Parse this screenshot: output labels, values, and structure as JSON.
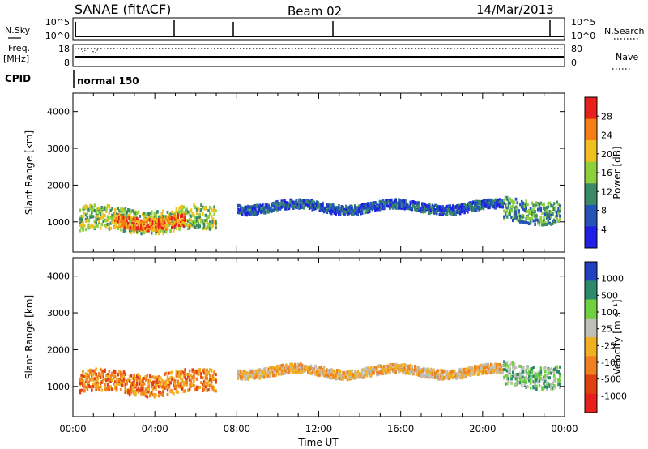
{
  "header": {
    "station": "SANAE (fitACF)",
    "beam": "Beam 02",
    "date": "14/Mar/2013"
  },
  "top_panels": {
    "nsky_label": "N.Sky",
    "nsky_ticks": [
      "10^5",
      "10^0"
    ],
    "nsearch_label": "N.Search",
    "nsearch_ticks": [
      "10^5",
      "10^0"
    ],
    "freq_label": "Freq.",
    "freq_unit": "[MHz]",
    "freq_ticks": [
      "18",
      "8"
    ],
    "nave_label": "Nave",
    "nave_ticks": [
      "80",
      "0"
    ],
    "cpid_label": "CPID",
    "cpid_value": "normal 150"
  },
  "chart_data": [
    {
      "type": "heatmap",
      "name": "power",
      "ylabel": "Slant Range [km]",
      "ylim": [
        180,
        4500
      ],
      "yticks": [
        1000,
        2000,
        3000,
        4000
      ],
      "xlim": [
        0,
        24
      ],
      "colorbar": {
        "label": "Power [dB]",
        "ticks": [
          "28",
          "24",
          "20",
          "16",
          "12",
          "8",
          "4"
        ],
        "colors": [
          "#1f1fe6",
          "#2454b8",
          "#3a8a66",
          "#8ecf3c",
          "#f0c020",
          "#f57f14",
          "#e6201c"
        ]
      },
      "bands": [
        {
          "x0": 0.3,
          "x1": 7.0,
          "center_km": 1050,
          "half_width_km": 320,
          "level": 3
        },
        {
          "x0": 2.0,
          "x1": 5.5,
          "center_km": 1000,
          "half_width_km": 160,
          "level": 5
        },
        {
          "x0": 8.0,
          "x1": 21.0,
          "center_km": 1400,
          "half_width_km": 120,
          "level": 1
        },
        {
          "x0": 21.0,
          "x1": 23.8,
          "center_km": 1300,
          "half_width_km": 300,
          "level": 2
        }
      ]
    },
    {
      "type": "heatmap",
      "name": "velocity",
      "ylabel": "Slant Range [km]",
      "ylim": [
        180,
        4500
      ],
      "yticks": [
        1000,
        2000,
        3000,
        4000
      ],
      "xlim": [
        0,
        24
      ],
      "xlabel": "Time UT",
      "xticks": [
        "00:00",
        "04:00",
        "08:00",
        "12:00",
        "16:00",
        "20:00",
        "00:00"
      ],
      "colorbar": {
        "label": "Velocity [m s⁻¹]",
        "ticks": [
          "1000",
          "500",
          "100",
          "25",
          "-25",
          "-100",
          "-500",
          "-1000"
        ],
        "colors": [
          "#2040c0",
          "#2a8a6a",
          "#6fd040",
          "#c0c0b8",
          "#f0b020",
          "#f08020",
          "#e04010",
          "#e6201c"
        ]
      },
      "bands": [
        {
          "x0": 0.3,
          "x1": 7.0,
          "center_km": 1100,
          "half_width_km": 300,
          "level": 2
        },
        {
          "x0": 8.0,
          "x1": 21.0,
          "center_km": 1400,
          "half_width_km": 120,
          "level": 3
        },
        {
          "x0": 21.0,
          "x1": 23.8,
          "center_km": 1300,
          "half_width_km": 300,
          "level": 5
        }
      ]
    }
  ]
}
